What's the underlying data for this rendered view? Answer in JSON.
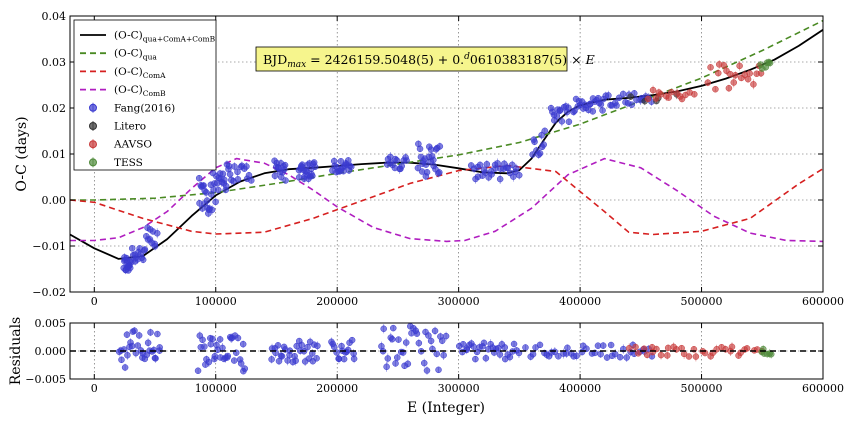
{
  "chart_data": [
    {
      "type": "scatter",
      "panel": "top",
      "xlabel": "",
      "ylabel": "O-C (days)",
      "xlim": [
        -20000,
        600000
      ],
      "ylim": [
        -0.02,
        0.04
      ],
      "xticks": [
        "0",
        "100000",
        "200000",
        "300000",
        "400000",
        "500000",
        "600000"
      ],
      "yticks": [
        "0.04",
        "0.03",
        "0.02",
        "0.01",
        "0.00",
        "−0.01",
        "−0.02"
      ],
      "grid": true,
      "legend_position": "top-left",
      "annotation": {
        "prefix": "BJD",
        "sub": "max",
        "mid": " = 2426159.5048(5) + 0.",
        "sup": "d",
        "suffix": "0610383187(5) × ",
        "var": "E"
      },
      "legend": [
        {
          "kind": "line",
          "color": "#000000",
          "dash": "",
          "base": "(O-C)",
          "sub": "qua+ComA+ComB"
        },
        {
          "kind": "line",
          "color": "#4a8a23",
          "dash": "6,4",
          "base": "(O-C)",
          "sub": "qua"
        },
        {
          "kind": "line",
          "color": "#d62020",
          "dash": "6,4",
          "base": "(O-C)",
          "sub": "ComA"
        },
        {
          "kind": "line",
          "color": "#b01ec0",
          "dash": "6,4",
          "base": "(O-C)",
          "sub": "ComB"
        },
        {
          "kind": "marker",
          "color": "#3a3ad0",
          "base": "Fang(2016)",
          "sub": ""
        },
        {
          "kind": "marker",
          "color": "#333333",
          "base": "Litero",
          "sub": ""
        },
        {
          "kind": "marker",
          "color": "#c83a3a",
          "base": "AAVSO",
          "sub": ""
        },
        {
          "kind": "marker",
          "color": "#4f8a3a",
          "base": "TESS",
          "sub": ""
        }
      ],
      "series": [
        {
          "name": "(O-C)qua+ComA+ComB",
          "kind": "line",
          "color": "#000000",
          "x": [
            -20000,
            0,
            20000,
            40000,
            60000,
            80000,
            100000,
            120000,
            140000,
            160000,
            180000,
            200000,
            220000,
            240000,
            260000,
            280000,
            300000,
            320000,
            340000,
            350000,
            360000,
            370000,
            380000,
            390000,
            400000,
            420000,
            440000,
            460000,
            480000,
            500000,
            520000,
            540000,
            560000,
            580000,
            600000
          ],
          "y": [
            -0.0075,
            -0.0105,
            -0.0128,
            -0.0122,
            -0.0085,
            -0.0035,
            0.001,
            0.004,
            0.0058,
            0.0067,
            0.007,
            0.0074,
            0.0078,
            0.0081,
            0.0081,
            0.0077,
            0.0069,
            0.006,
            0.0058,
            0.0065,
            0.009,
            0.013,
            0.0168,
            0.0192,
            0.0206,
            0.0218,
            0.0222,
            0.0228,
            0.0236,
            0.0248,
            0.0264,
            0.0283,
            0.0305,
            0.0335,
            0.037
          ]
        },
        {
          "name": "(O-C)qua",
          "kind": "line",
          "color": "#4a8a23",
          "dash": "6,4",
          "x": [
            -20000,
            0,
            50000,
            100000,
            150000,
            200000,
            250000,
            300000,
            350000,
            400000,
            450000,
            500000,
            550000,
            600000
          ],
          "y": [
            0.0,
            0.0,
            0.0004,
            0.0016,
            0.0036,
            0.0058,
            0.0078,
            0.0098,
            0.0125,
            0.0165,
            0.0215,
            0.0265,
            0.0325,
            0.039
          ]
        },
        {
          "name": "(O-C)ComA",
          "kind": "line",
          "color": "#d62020",
          "dash": "6,4",
          "x": [
            -20000,
            0,
            40000,
            80000,
            100000,
            140000,
            180000,
            220000,
            260000,
            300000,
            340000,
            380000,
            420000,
            440000,
            460000,
            500000,
            540000,
            580000,
            600000
          ],
          "y": [
            0.0,
            -0.0005,
            -0.004,
            -0.0068,
            -0.0074,
            -0.007,
            -0.004,
            -0.0002,
            0.0036,
            0.0064,
            0.0075,
            0.0062,
            -0.0025,
            -0.007,
            -0.0075,
            -0.0068,
            -0.004,
            0.0035,
            0.0068
          ]
        },
        {
          "name": "(O-C)ComB",
          "kind": "line",
          "color": "#b01ec0",
          "dash": "6,4",
          "x": [
            -20000,
            0,
            20000,
            40000,
            60000,
            80000,
            100000,
            117000,
            140000,
            160000,
            180000,
            200000,
            230000,
            260000,
            290000,
            305000,
            330000,
            360000,
            390000,
            420000,
            450000,
            480000,
            510000,
            540000,
            570000,
            600000
          ],
          "y": [
            -0.0088,
            -0.0088,
            -0.0082,
            -0.006,
            -0.0025,
            0.0025,
            0.007,
            0.009,
            0.008,
            0.0055,
            0.0022,
            -0.0015,
            -0.006,
            -0.0084,
            -0.009,
            -0.0088,
            -0.0068,
            -0.0018,
            0.0055,
            0.009,
            0.007,
            0.002,
            -0.0035,
            -0.0072,
            -0.0088,
            -0.009
          ]
        }
      ],
      "points": [
        {
          "name": "Fang(2016)",
          "color": "#3a3ad0",
          "clusters": [
            {
              "x": [
                24000,
                30000
              ],
              "y": [
                -0.016,
                -0.012
              ],
              "n": 16
            },
            {
              "x": [
                30000,
                42000
              ],
              "y": [
                -0.014,
                -0.009
              ],
              "n": 14
            },
            {
              "x": [
                42000,
                52000
              ],
              "y": [
                -0.012,
                -0.006
              ],
              "n": 10
            },
            {
              "x": [
                86000,
                100000
              ],
              "y": [
                -0.003,
                0.006
              ],
              "n": 22
            },
            {
              "x": [
                100000,
                112000
              ],
              "y": [
                0.002,
                0.008
              ],
              "n": 16
            },
            {
              "x": [
                112000,
                130000
              ],
              "y": [
                0.004,
                0.008
              ],
              "n": 12
            },
            {
              "x": [
                148000,
                158000
              ],
              "y": [
                0.004,
                0.009
              ],
              "n": 14
            },
            {
              "x": [
                168000,
                182000
              ],
              "y": [
                0.0045,
                0.0085
              ],
              "n": 22
            },
            {
              "x": [
                196000,
                212000
              ],
              "y": [
                0.006,
                0.009
              ],
              "n": 18
            },
            {
              "x": [
                240000,
                258000
              ],
              "y": [
                0.006,
                0.0095
              ],
              "n": 14
            },
            {
              "x": [
                266000,
                285000
              ],
              "y": [
                0.005,
                0.0125
              ],
              "n": 24
            },
            {
              "x": [
                310000,
                350000
              ],
              "y": [
                0.0045,
                0.008
              ],
              "n": 28
            },
            {
              "x": [
                360000,
                372000
              ],
              "y": [
                0.0095,
                0.0155
              ],
              "n": 10
            },
            {
              "x": [
                375000,
                392000
              ],
              "y": [
                0.017,
                0.021
              ],
              "n": 14
            },
            {
              "x": [
                394000,
                420000
              ],
              "y": [
                0.019,
                0.0225
              ],
              "n": 22
            },
            {
              "x": [
                420000,
                460000
              ],
              "y": [
                0.0205,
                0.0235
              ],
              "n": 20
            }
          ]
        },
        {
          "name": "Litero",
          "color": "#333333",
          "clusters": [
            {
              "x": [
                440000,
                480000
              ],
              "y": [
                0.021,
                0.0235
              ],
              "n": 5
            }
          ]
        },
        {
          "name": "AAVSO",
          "color": "#c83a3a",
          "clusters": [
            {
              "x": [
                455000,
                495000
              ],
              "y": [
                0.0215,
                0.024
              ],
              "n": 14
            },
            {
              "x": [
                505000,
                550000
              ],
              "y": [
                0.024,
                0.0295
              ],
              "n": 20
            }
          ]
        },
        {
          "name": "TESS",
          "color": "#4f8a3a",
          "clusters": [
            {
              "x": [
                548000,
                558000
              ],
              "y": [
                0.0285,
                0.0305
              ],
              "n": 6
            }
          ]
        }
      ]
    },
    {
      "type": "scatter",
      "panel": "bottom",
      "xlabel": "E (Integer)",
      "ylabel": "Residuals",
      "xlim": [
        -20000,
        600000
      ],
      "ylim": [
        -0.005,
        0.005
      ],
      "xticks": [
        "0",
        "100000",
        "200000",
        "300000",
        "400000",
        "500000",
        "600000"
      ],
      "yticks": [
        "0.005",
        "0.000",
        "−0.005"
      ],
      "grid": true,
      "zero_line": true,
      "points": [
        {
          "name": "Fang(2016)",
          "color": "#3a3ad0",
          "clusters": [
            {
              "x": [
                20000,
                55000
              ],
              "y": [
                -0.003,
                0.004
              ],
              "n": 30
            },
            {
              "x": [
                85000,
                125000
              ],
              "y": [
                -0.004,
                0.003
              ],
              "n": 34
            },
            {
              "x": [
                145000,
                185000
              ],
              "y": [
                -0.002,
                0.002
              ],
              "n": 30
            },
            {
              "x": [
                195000,
                215000
              ],
              "y": [
                -0.0015,
                0.002
              ],
              "n": 16
            },
            {
              "x": [
                235000,
                290000
              ],
              "y": [
                -0.0035,
                0.0045
              ],
              "n": 36
            },
            {
              "x": [
                300000,
                350000
              ],
              "y": [
                -0.0015,
                0.0015
              ],
              "n": 30
            },
            {
              "x": [
                355000,
                460000
              ],
              "y": [
                -0.0012,
                0.0012
              ],
              "n": 40
            }
          ]
        },
        {
          "name": "AAVSO",
          "color": "#c83a3a",
          "clusters": [
            {
              "x": [
                440000,
                550000
              ],
              "y": [
                -0.001,
                0.0008
              ],
              "n": 34
            }
          ]
        },
        {
          "name": "TESS",
          "color": "#4f8a3a",
          "clusters": [
            {
              "x": [
                548000,
                558000
              ],
              "y": [
                -0.0006,
                0.0006
              ],
              "n": 6
            }
          ]
        }
      ]
    }
  ]
}
